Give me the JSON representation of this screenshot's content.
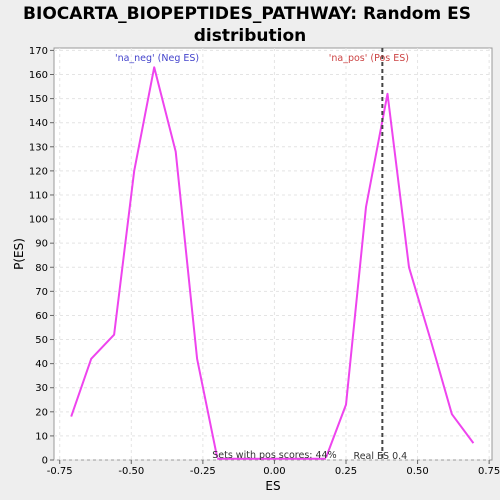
{
  "chart_data": {
    "type": "line",
    "title_lines": [
      "BIOCARTA_BIOPEPTIDES_PATHWAY: Random ES",
      "distribution"
    ],
    "xlabel": "ES",
    "ylabel": "P(ES)",
    "xlim": [
      -0.77,
      0.76
    ],
    "ylim": [
      0,
      171
    ],
    "x_ticks": [
      -0.75,
      -0.5,
      -0.25,
      0.0,
      0.25,
      0.5,
      0.75
    ],
    "x_tick_labels": [
      "-0.75",
      "-0.50",
      "-0.25",
      "0.00",
      "0.25",
      "0.50",
      "0.75"
    ],
    "y_ticks": [
      0,
      10,
      20,
      30,
      40,
      50,
      60,
      70,
      80,
      90,
      100,
      110,
      120,
      130,
      140,
      150,
      160,
      170
    ],
    "grid": true,
    "line_color": "#ee44ee",
    "series": [
      {
        "label": "'na_neg' (Neg ES)",
        "label_color": "#4444cc",
        "x": [
          -0.71,
          -0.64,
          -0.56,
          -0.49,
          -0.42,
          -0.345,
          -0.27,
          -0.2
        ],
        "y": [
          18,
          42,
          52,
          120,
          163,
          128,
          42,
          1
        ]
      },
      {
        "x": [
          -0.2,
          0.18
        ],
        "y": [
          0.5,
          0.5
        ]
      },
      {
        "label": "'na_pos' (Pos ES)",
        "label_color": "#cc4444",
        "x": [
          0.18,
          0.25,
          0.32,
          0.395,
          0.47,
          0.545,
          0.62,
          0.695
        ],
        "y": [
          1,
          23,
          105,
          152,
          80,
          50,
          19,
          7
        ]
      }
    ],
    "real_es": 0.4,
    "real_es_x": 0.377,
    "real_es_label": "Real ES 0.4",
    "annotation": "Sets with pos scores: 44%"
  }
}
